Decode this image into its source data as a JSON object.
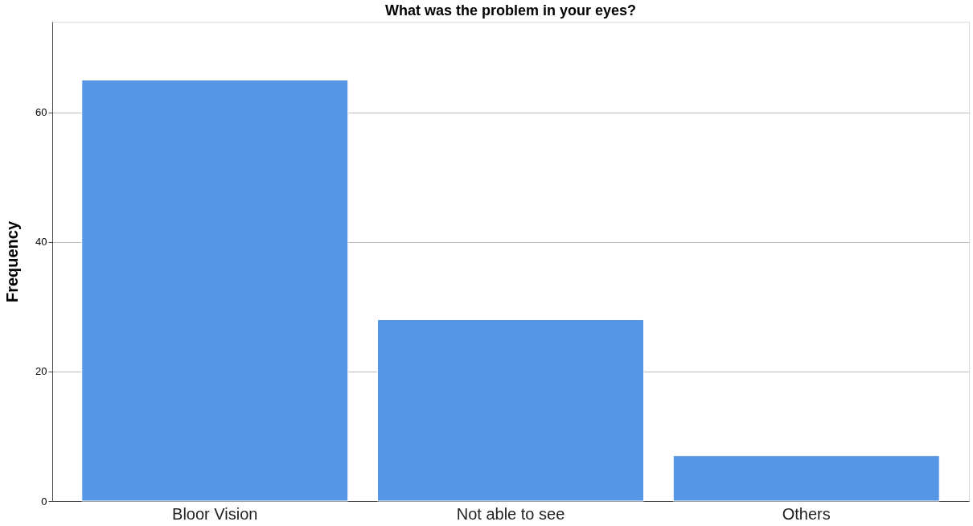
{
  "chart_data": {
    "type": "bar",
    "title": "What was the problem in your eyes?",
    "ylabel": "Frequency",
    "categories": [
      "Bloor Vision",
      "Not able to see",
      "Others"
    ],
    "values": [
      65,
      28,
      7
    ],
    "color": "#5596e5",
    "ylim": [
      0,
      74
    ],
    "yticks": [
      0,
      20,
      40,
      60
    ],
    "grid": "y"
  }
}
